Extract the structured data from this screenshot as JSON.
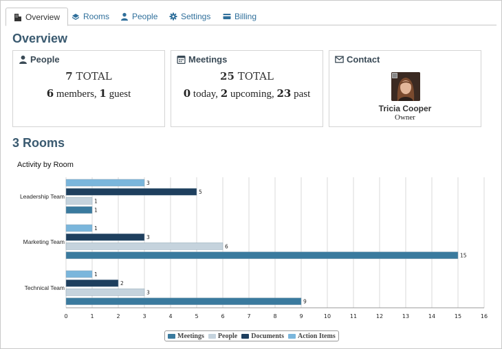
{
  "tabs": [
    {
      "label": "Overview",
      "icon": "building-icon",
      "active": true
    },
    {
      "label": "Rooms",
      "icon": "room-icon",
      "active": false
    },
    {
      "label": "People",
      "icon": "person-icon",
      "active": false
    },
    {
      "label": "Settings",
      "icon": "gear-icon",
      "active": false
    },
    {
      "label": "Billing",
      "icon": "credit-card-icon",
      "active": false
    }
  ],
  "overview": {
    "heading": "Overview",
    "people": {
      "title": "People",
      "total_num": "7",
      "total_label": "TOTAL",
      "members_num": "6",
      "members_label": "members,",
      "guests_num": "1",
      "guests_label": "guest"
    },
    "meetings": {
      "title": "Meetings",
      "total_num": "25",
      "total_label": "TOTAL",
      "today_num": "0",
      "today_label": "today,",
      "upcoming_num": "2",
      "upcoming_label": "upcoming,",
      "past_num": "23",
      "past_label": "past"
    },
    "contact": {
      "title": "Contact",
      "name": "Tricia Cooper",
      "role": "Owner"
    }
  },
  "rooms": {
    "heading": "3 Rooms"
  },
  "colors": {
    "meetings": "#3a7a9e",
    "people": "#c5d3dd",
    "documents": "#1e3f5e",
    "action_items": "#7ab6dc"
  },
  "chart_data": {
    "type": "bar",
    "orientation": "horizontal",
    "title": "Activity by Room",
    "categories": [
      "Leadership Team",
      "Marketing Team",
      "Technical Team"
    ],
    "series": [
      {
        "name": "Action Items",
        "values": [
          3,
          1,
          1
        ]
      },
      {
        "name": "Documents",
        "values": [
          5,
          3,
          2
        ]
      },
      {
        "name": "People",
        "values": [
          1,
          6,
          3
        ]
      },
      {
        "name": "Meetings",
        "values": [
          1,
          15,
          9
        ]
      }
    ],
    "xlim": [
      0,
      16
    ],
    "x_ticks": [
      "0",
      "1",
      "2",
      "3",
      "4",
      "5",
      "6",
      "7",
      "8",
      "9",
      "10",
      "11",
      "12",
      "13",
      "14",
      "15",
      "16"
    ],
    "grid": true,
    "legend": [
      "Meetings",
      "People",
      "Documents",
      "Action Items"
    ],
    "legend_placement": "bottom"
  }
}
